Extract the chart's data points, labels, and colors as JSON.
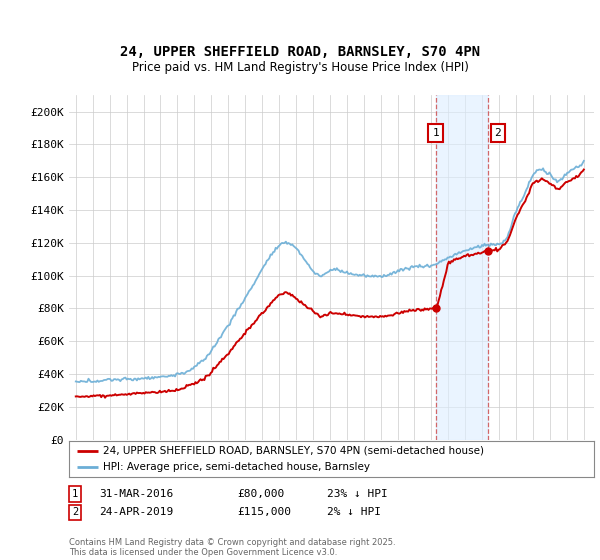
{
  "title": "24, UPPER SHEFFIELD ROAD, BARNSLEY, S70 4PN",
  "subtitle": "Price paid vs. HM Land Registry's House Price Index (HPI)",
  "legend_line1": "24, UPPER SHEFFIELD ROAD, BARNSLEY, S70 4PN (semi-detached house)",
  "legend_line2": "HPI: Average price, semi-detached house, Barnsley",
  "annotation1_date": "31-MAR-2016",
  "annotation1_price": "£80,000",
  "annotation1_hpi": "23% ↓ HPI",
  "annotation1_year": 2016.25,
  "annotation1_value": 80000,
  "annotation2_date": "24-APR-2019",
  "annotation2_price": "£115,000",
  "annotation2_hpi": "2% ↓ HPI",
  "annotation2_year": 2019.33,
  "annotation2_value": 115000,
  "footer": "Contains HM Land Registry data © Crown copyright and database right 2025.\nThis data is licensed under the Open Government Licence v3.0.",
  "hpi_color": "#6baed6",
  "price_color": "#cc0000",
  "ylim": [
    0,
    210000
  ],
  "yticks": [
    0,
    20000,
    40000,
    60000,
    80000,
    100000,
    120000,
    140000,
    160000,
    180000,
    200000
  ],
  "bg_color": "#ffffff",
  "grid_color": "#cccccc",
  "shade_color": "#ddeeff"
}
